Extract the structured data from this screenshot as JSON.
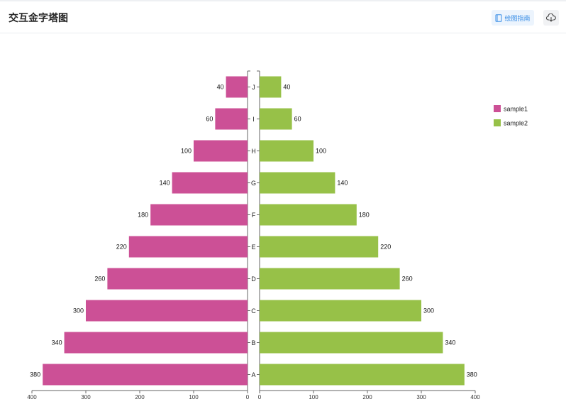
{
  "header": {
    "title": "交互金字塔图",
    "guide_label": "绘图指南",
    "guide_icon": "book-icon",
    "download_icon": "cloud-download-icon"
  },
  "chart_data": {
    "type": "bar",
    "categories": [
      "A",
      "B",
      "C",
      "D",
      "E",
      "F",
      "G",
      "H",
      "I",
      "J"
    ],
    "series": [
      {
        "name": "sample1",
        "color": "#cc5096",
        "side": "left",
        "values": [
          380,
          340,
          300,
          260,
          220,
          180,
          140,
          100,
          60,
          40
        ]
      },
      {
        "name": "sample2",
        "color": "#97c148",
        "side": "right",
        "values": [
          380,
          340,
          300,
          260,
          220,
          180,
          140,
          100,
          60,
          40
        ]
      }
    ],
    "xlim": [
      0,
      400
    ],
    "xticks": [
      0,
      100,
      200,
      300,
      400
    ],
    "xticklabels": [
      "0",
      "100",
      "200",
      "300",
      "400"
    ],
    "legend_position": "top-right",
    "grid": false
  }
}
